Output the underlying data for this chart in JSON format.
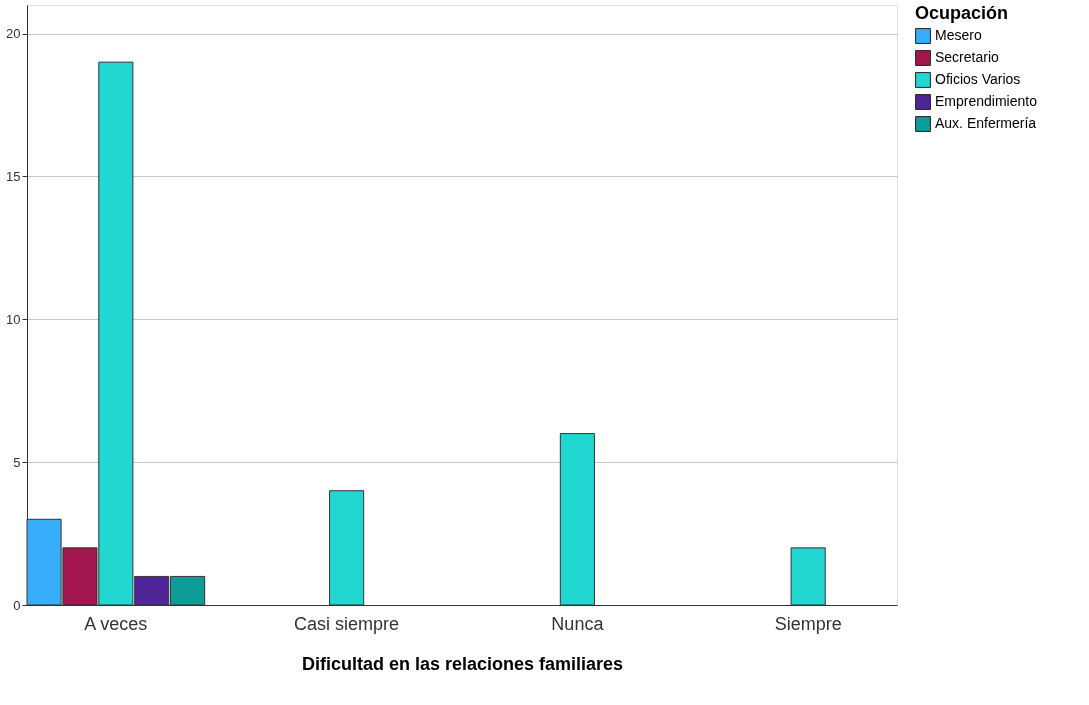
{
  "chart_data": {
    "type": "bar",
    "xlabel": "Dificultad en las relaciones familiares",
    "legend_title": "Ocupación",
    "categories": [
      "A veces",
      "Casi siempre",
      "Nunca",
      "Siempre"
    ],
    "series": [
      {
        "name": "Mesero",
        "color": "#38aefa",
        "values": [
          3,
          null,
          null,
          null
        ]
      },
      {
        "name": "Secretario",
        "color": "#a3174e",
        "values": [
          2,
          null,
          null,
          null
        ]
      },
      {
        "name": "Oficios Varios",
        "color": "#22d6d2",
        "values": [
          19,
          4,
          6,
          2
        ]
      },
      {
        "name": "Emprendimiento",
        "color": "#4f2598",
        "values": [
          1,
          null,
          null,
          null
        ]
      },
      {
        "name": "Aux. Enfermería",
        "color": "#0e9c98",
        "values": [
          1,
          null,
          null,
          null
        ]
      }
    ],
    "ylim": [
      0,
      21
    ],
    "yticks": [
      0,
      5,
      10,
      15,
      20
    ],
    "grid": "y",
    "legend": "top right"
  }
}
